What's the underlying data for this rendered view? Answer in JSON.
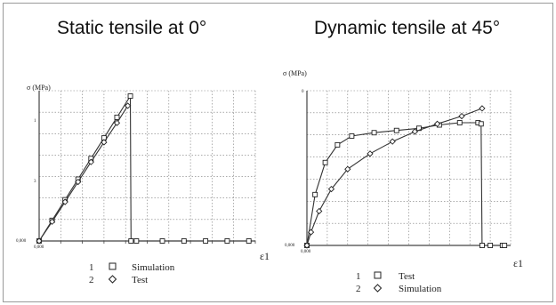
{
  "titles": {
    "left": "Static tensile at 0°",
    "right": "Dynamic tensile at 45°"
  },
  "chart_data": [
    {
      "type": "line",
      "title": "Static tensile at 0°",
      "ylabel": "σ (MPa)",
      "xlabel": "ε1",
      "y_origin_label": "0,000",
      "x_origin_label": "0,000",
      "y_tick_labels": [
        "3",
        "1"
      ],
      "grid": true,
      "xlim": [
        0,
        10
      ],
      "ylim": [
        0,
        7
      ],
      "legend_placement": "bottom",
      "legend": [
        {
          "number": "1",
          "marker": "square",
          "name": "Simulation"
        },
        {
          "number": "2",
          "marker": "diamond",
          "name": "Test"
        }
      ],
      "series": [
        {
          "name": "Simulation",
          "marker": "square",
          "x": [
            0,
            0.6,
            1.2,
            1.8,
            2.4,
            3.0,
            3.6,
            4.22,
            4.25,
            4.5,
            5.7,
            6.7,
            7.7,
            8.7,
            9.7
          ],
          "y": [
            0,
            0.96,
            1.92,
            2.88,
            3.84,
            4.8,
            5.76,
            6.75,
            0,
            0,
            0,
            0,
            0,
            0,
            0
          ]
        },
        {
          "name": "Test",
          "marker": "diamond",
          "x": [
            0,
            0.6,
            1.2,
            1.8,
            2.4,
            3.0,
            3.6,
            4.1
          ],
          "y": [
            0,
            0.9,
            1.82,
            2.75,
            3.68,
            4.6,
            5.5,
            6.3
          ]
        }
      ]
    },
    {
      "type": "line",
      "title": "Dynamic tensile at 45°",
      "ylabel": "σ (MPa)",
      "xlabel": "ε1",
      "y_origin_label": "0,000",
      "x_origin_label": "0,000",
      "y_tick_labels": [
        "0"
      ],
      "grid": true,
      "xlim": [
        0,
        10
      ],
      "ylim": [
        0,
        7
      ],
      "legend_placement": "bottom",
      "legend": [
        {
          "number": "1",
          "marker": "square",
          "name": "Test"
        },
        {
          "number": "2",
          "marker": "diamond",
          "name": "Simulation"
        }
      ],
      "series": [
        {
          "name": "Test",
          "marker": "square",
          "x": [
            0,
            0.4,
            0.9,
            1.5,
            2.2,
            3.3,
            4.4,
            5.5,
            6.5,
            7.5,
            8.4,
            8.55,
            8.6,
            9.0,
            9.6,
            9.7
          ],
          "y": [
            0,
            2.3,
            3.75,
            4.55,
            4.95,
            5.1,
            5.2,
            5.3,
            5.45,
            5.55,
            5.55,
            5.5,
            0,
            0,
            0,
            0
          ]
        },
        {
          "name": "Simulation",
          "marker": "diamond",
          "x": [
            0,
            0.2,
            0.6,
            1.2,
            2.0,
            3.1,
            4.2,
            5.3,
            6.4,
            7.6,
            8.6
          ],
          "y": [
            0,
            0.6,
            1.55,
            2.55,
            3.45,
            4.15,
            4.7,
            5.15,
            5.5,
            5.85,
            6.2
          ]
        }
      ]
    }
  ]
}
